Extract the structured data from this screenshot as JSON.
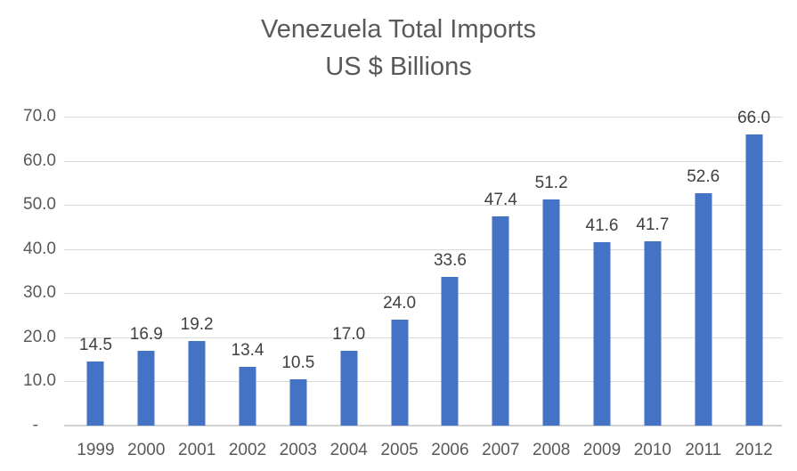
{
  "chart_data": {
    "type": "bar",
    "title": "Venezuela Total Imports",
    "subtitle": "US $ Billions",
    "categories": [
      "1999",
      "2000",
      "2001",
      "2002",
      "2003",
      "2004",
      "2005",
      "2006",
      "2007",
      "2008",
      "2009",
      "2010",
      "2011",
      "2012"
    ],
    "values": [
      14.5,
      16.9,
      19.2,
      13.4,
      10.5,
      17.0,
      24.0,
      33.6,
      47.4,
      51.2,
      41.6,
      41.7,
      52.6,
      66.0
    ],
    "value_labels": [
      "14.5",
      "16.9",
      "19.2",
      "13.4",
      "10.5",
      "17.0",
      "24.0",
      "33.6",
      "47.4",
      "51.2",
      "41.6",
      "41.7",
      "52.6",
      "66.0"
    ],
    "xlabel": "",
    "ylabel": "",
    "ylim": [
      0,
      70
    ],
    "ytick_interval": 10,
    "ytick_labels_top_to_bottom": [
      "70.0",
      "60.0",
      "50.0",
      "40.0",
      "30.0",
      "20.0",
      "10.0",
      "-"
    ],
    "grid": "horizontal",
    "legend": "none",
    "bar_color": "#4472C4",
    "gridline_color": "#D9D9D9",
    "text_color": "#595959",
    "data_label_color": "#404040"
  }
}
